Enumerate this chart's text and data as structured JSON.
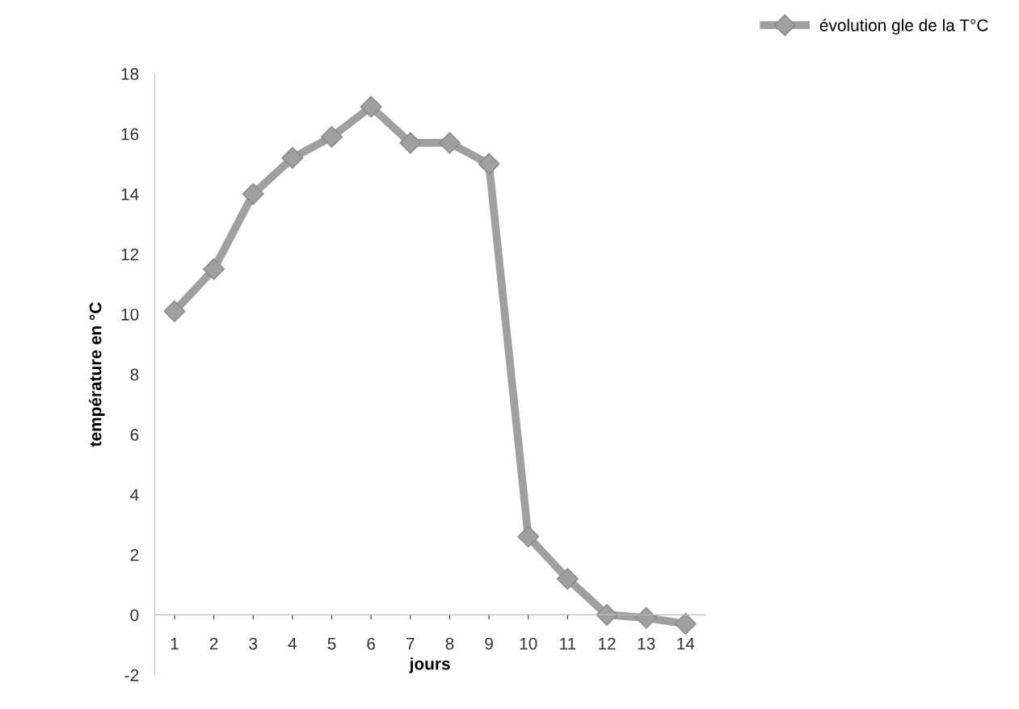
{
  "chart_data": {
    "type": "line",
    "xlabel": "jours",
    "ylabel": "température en °C",
    "categories": [
      "1",
      "2",
      "3",
      "4",
      "5",
      "6",
      "7",
      "8",
      "9",
      "10",
      "11",
      "12",
      "13",
      "14"
    ],
    "series": [
      {
        "name": "évolution gle de la T°C",
        "color": "#a0a0a0",
        "values": [
          10.1,
          11.5,
          14.0,
          15.2,
          15.9,
          16.9,
          15.7,
          15.7,
          15.0,
          2.6,
          1.2,
          0.0,
          -0.1,
          -0.3
        ]
      }
    ],
    "ylim": [
      -2,
      18
    ],
    "yticks": [
      -2,
      0,
      2,
      4,
      6,
      8,
      10,
      12,
      14,
      16,
      18
    ],
    "grid": false,
    "legend": "top right",
    "marker": "diamond",
    "line_style": "solid"
  }
}
